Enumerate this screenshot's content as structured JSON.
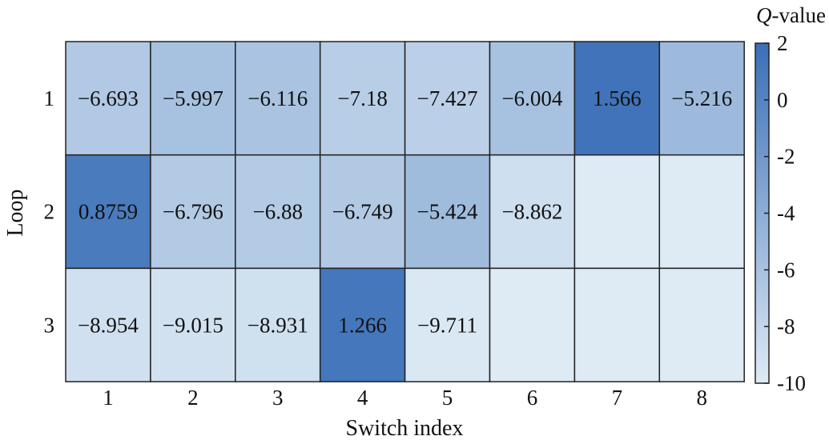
{
  "chart_data": {
    "type": "heatmap",
    "xlabel": "Switch index",
    "ylabel": "Loop",
    "x_categories": [
      "1",
      "2",
      "3",
      "4",
      "5",
      "6",
      "7",
      "8"
    ],
    "y_categories": [
      "1",
      "2",
      "3"
    ],
    "values": [
      [
        -6.693,
        -5.997,
        -6.116,
        -7.18,
        -7.427,
        -6.004,
        1.566,
        -5.216
      ],
      [
        0.8759,
        -6.796,
        -6.88,
        -6.749,
        -5.424,
        -8.862,
        null,
        null
      ],
      [
        -8.954,
        -9.015,
        -8.931,
        1.266,
        -9.711,
        null,
        null,
        null
      ]
    ],
    "cell_labels": [
      [
        "−6.693",
        "−5.997",
        "−6.116",
        "−7.18",
        "−7.427",
        "−6.004",
        "1.566",
        "−5.216"
      ],
      [
        "0.8759",
        "−6.796",
        "−6.88",
        "−6.749",
        "−5.424",
        "−8.862",
        "",
        ""
      ],
      [
        "−8.954",
        "−9.015",
        "−8.931",
        "1.266",
        "−9.711",
        "",
        "",
        ""
      ]
    ],
    "colorbar": {
      "title": "Q-value",
      "title_italic_part": "Q",
      "title_rest": "-value",
      "range": [
        -10,
        2
      ],
      "ticks": [
        2,
        0,
        -2,
        -4,
        -6,
        -8,
        -10
      ],
      "tick_labels": [
        "2",
        "0",
        "-2",
        "-4",
        "-6",
        "-8",
        "-10"
      ],
      "color_low": "#deebf5",
      "color_high": "#3a6fb7"
    }
  }
}
